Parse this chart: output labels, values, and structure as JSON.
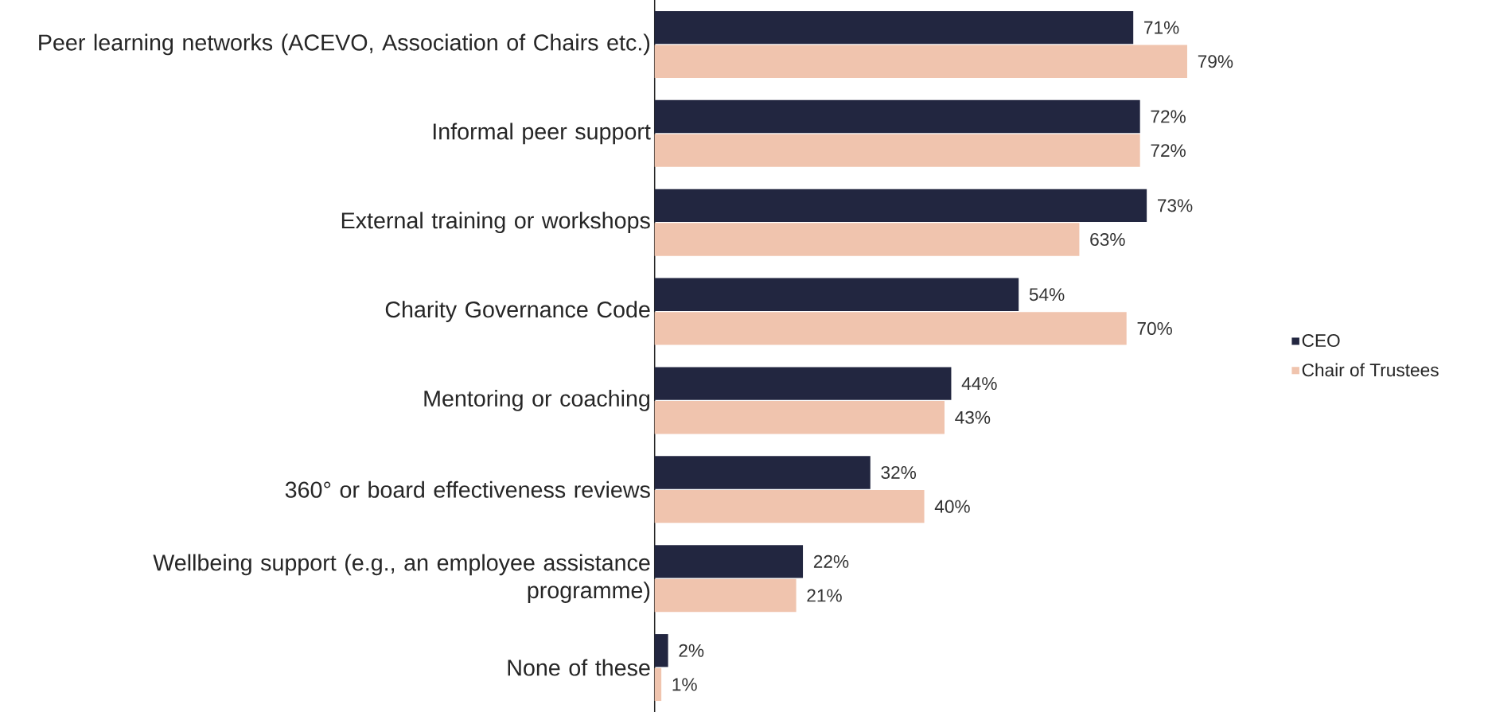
{
  "chart_data": {
    "type": "bar",
    "orientation": "horizontal",
    "categories": [
      "Peer learning networks (ACEVO, Association of Chairs etc.)",
      "Informal peer support",
      "External training or workshops",
      "Charity Governance Code",
      "Mentoring or coaching",
      "360° or board effectiveness reviews",
      "Wellbeing support (e.g., an employee assistance programme)",
      "None of these"
    ],
    "series": [
      {
        "name": "CEO",
        "color": "#222640",
        "values": [
          71,
          72,
          73,
          54,
          44,
          32,
          22,
          2
        ],
        "value_labels": [
          "71%",
          "72%",
          "73%",
          "54%",
          "44%",
          "32%",
          "22%",
          "2%"
        ]
      },
      {
        "name": "Chair of Trustees",
        "color": "#f0c4ae",
        "values": [
          79,
          72,
          63,
          70,
          43,
          40,
          21,
          1
        ],
        "value_labels": [
          "79%",
          "72%",
          "63%",
          "70%",
          "43%",
          "40%",
          "21%",
          "1%"
        ]
      }
    ],
    "legend": "right"
  }
}
